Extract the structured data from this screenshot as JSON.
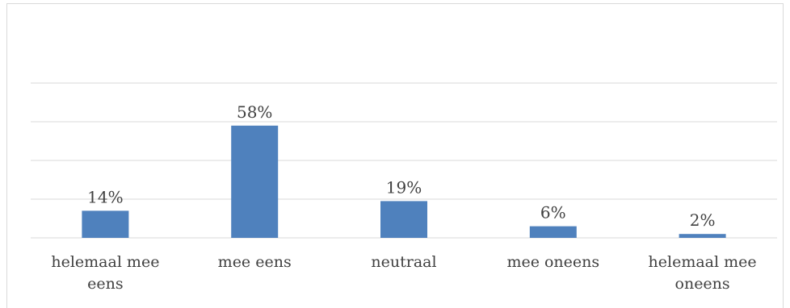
{
  "chart_data": {
    "type": "bar",
    "categories": [
      [
        "helemaal mee",
        "eens"
      ],
      [
        "mee eens"
      ],
      [
        "neutraal"
      ],
      [
        "mee oneens"
      ],
      [
        "helemaal mee",
        "oneens"
      ]
    ],
    "values": [
      14,
      58,
      19,
      6,
      2
    ],
    "value_labels": [
      "14%",
      "58%",
      "19%",
      "6%",
      "2%"
    ],
    "ylim": [
      0,
      80
    ],
    "grid": true,
    "bar_color": "#4f81bd",
    "grid_color": "#d9d9d9"
  }
}
